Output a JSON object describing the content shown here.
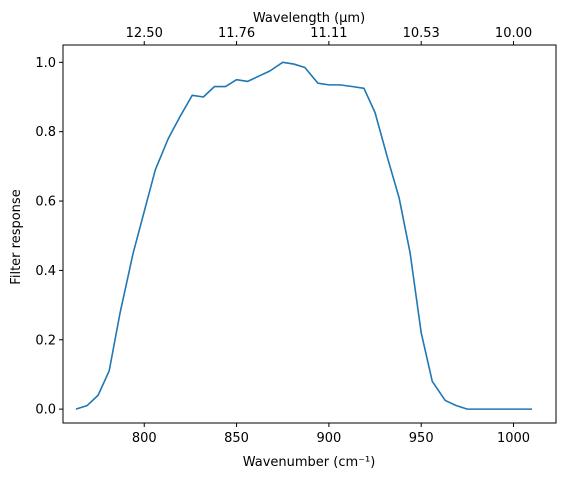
{
  "chart_data": {
    "type": "line",
    "xlabel": "Wavenumber (cm⁻¹)",
    "ylabel": "Filter response",
    "top_xlabel": "Wavelength (μm)",
    "xlim": [
      756,
      1023
    ],
    "ylim": [
      -0.04,
      1.05
    ],
    "grid": false,
    "x_ticks": [
      800,
      850,
      900,
      950,
      1000
    ],
    "x_tick_labels": [
      "800",
      "850",
      "900",
      "950",
      "1000"
    ],
    "y_ticks": [
      0.0,
      0.2,
      0.4,
      0.6,
      0.8,
      1.0
    ],
    "y_tick_labels": [
      "0.0",
      "0.2",
      "0.4",
      "0.6",
      "0.8",
      "1.0"
    ],
    "top_ticks": [
      800,
      850,
      900,
      950,
      1000
    ],
    "top_tick_labels": [
      "12.50",
      "11.76",
      "11.11",
      "10.53",
      "10.00"
    ],
    "series": [
      {
        "color": "#1f77b4",
        "x": [
          763,
          769,
          775,
          781,
          787,
          794,
          800,
          806,
          813,
          819,
          826,
          832,
          838,
          844,
          850,
          856,
          862,
          868,
          875,
          881,
          887,
          894,
          900,
          906,
          913,
          919,
          925,
          932,
          938,
          944,
          950,
          956,
          963,
          969,
          975,
          981,
          988,
          994,
          1000,
          1006,
          1010
        ],
        "y": [
          0.0,
          0.01,
          0.04,
          0.11,
          0.28,
          0.45,
          0.57,
          0.69,
          0.78,
          0.84,
          0.905,
          0.9,
          0.93,
          0.93,
          0.95,
          0.945,
          0.96,
          0.975,
          1.0,
          0.995,
          0.985,
          0.94,
          0.935,
          0.935,
          0.93,
          0.925,
          0.855,
          0.72,
          0.61,
          0.45,
          0.22,
          0.08,
          0.025,
          0.01,
          0.0,
          0.0,
          0.0,
          0.0,
          0.0,
          0.0,
          0.0
        ]
      }
    ]
  }
}
